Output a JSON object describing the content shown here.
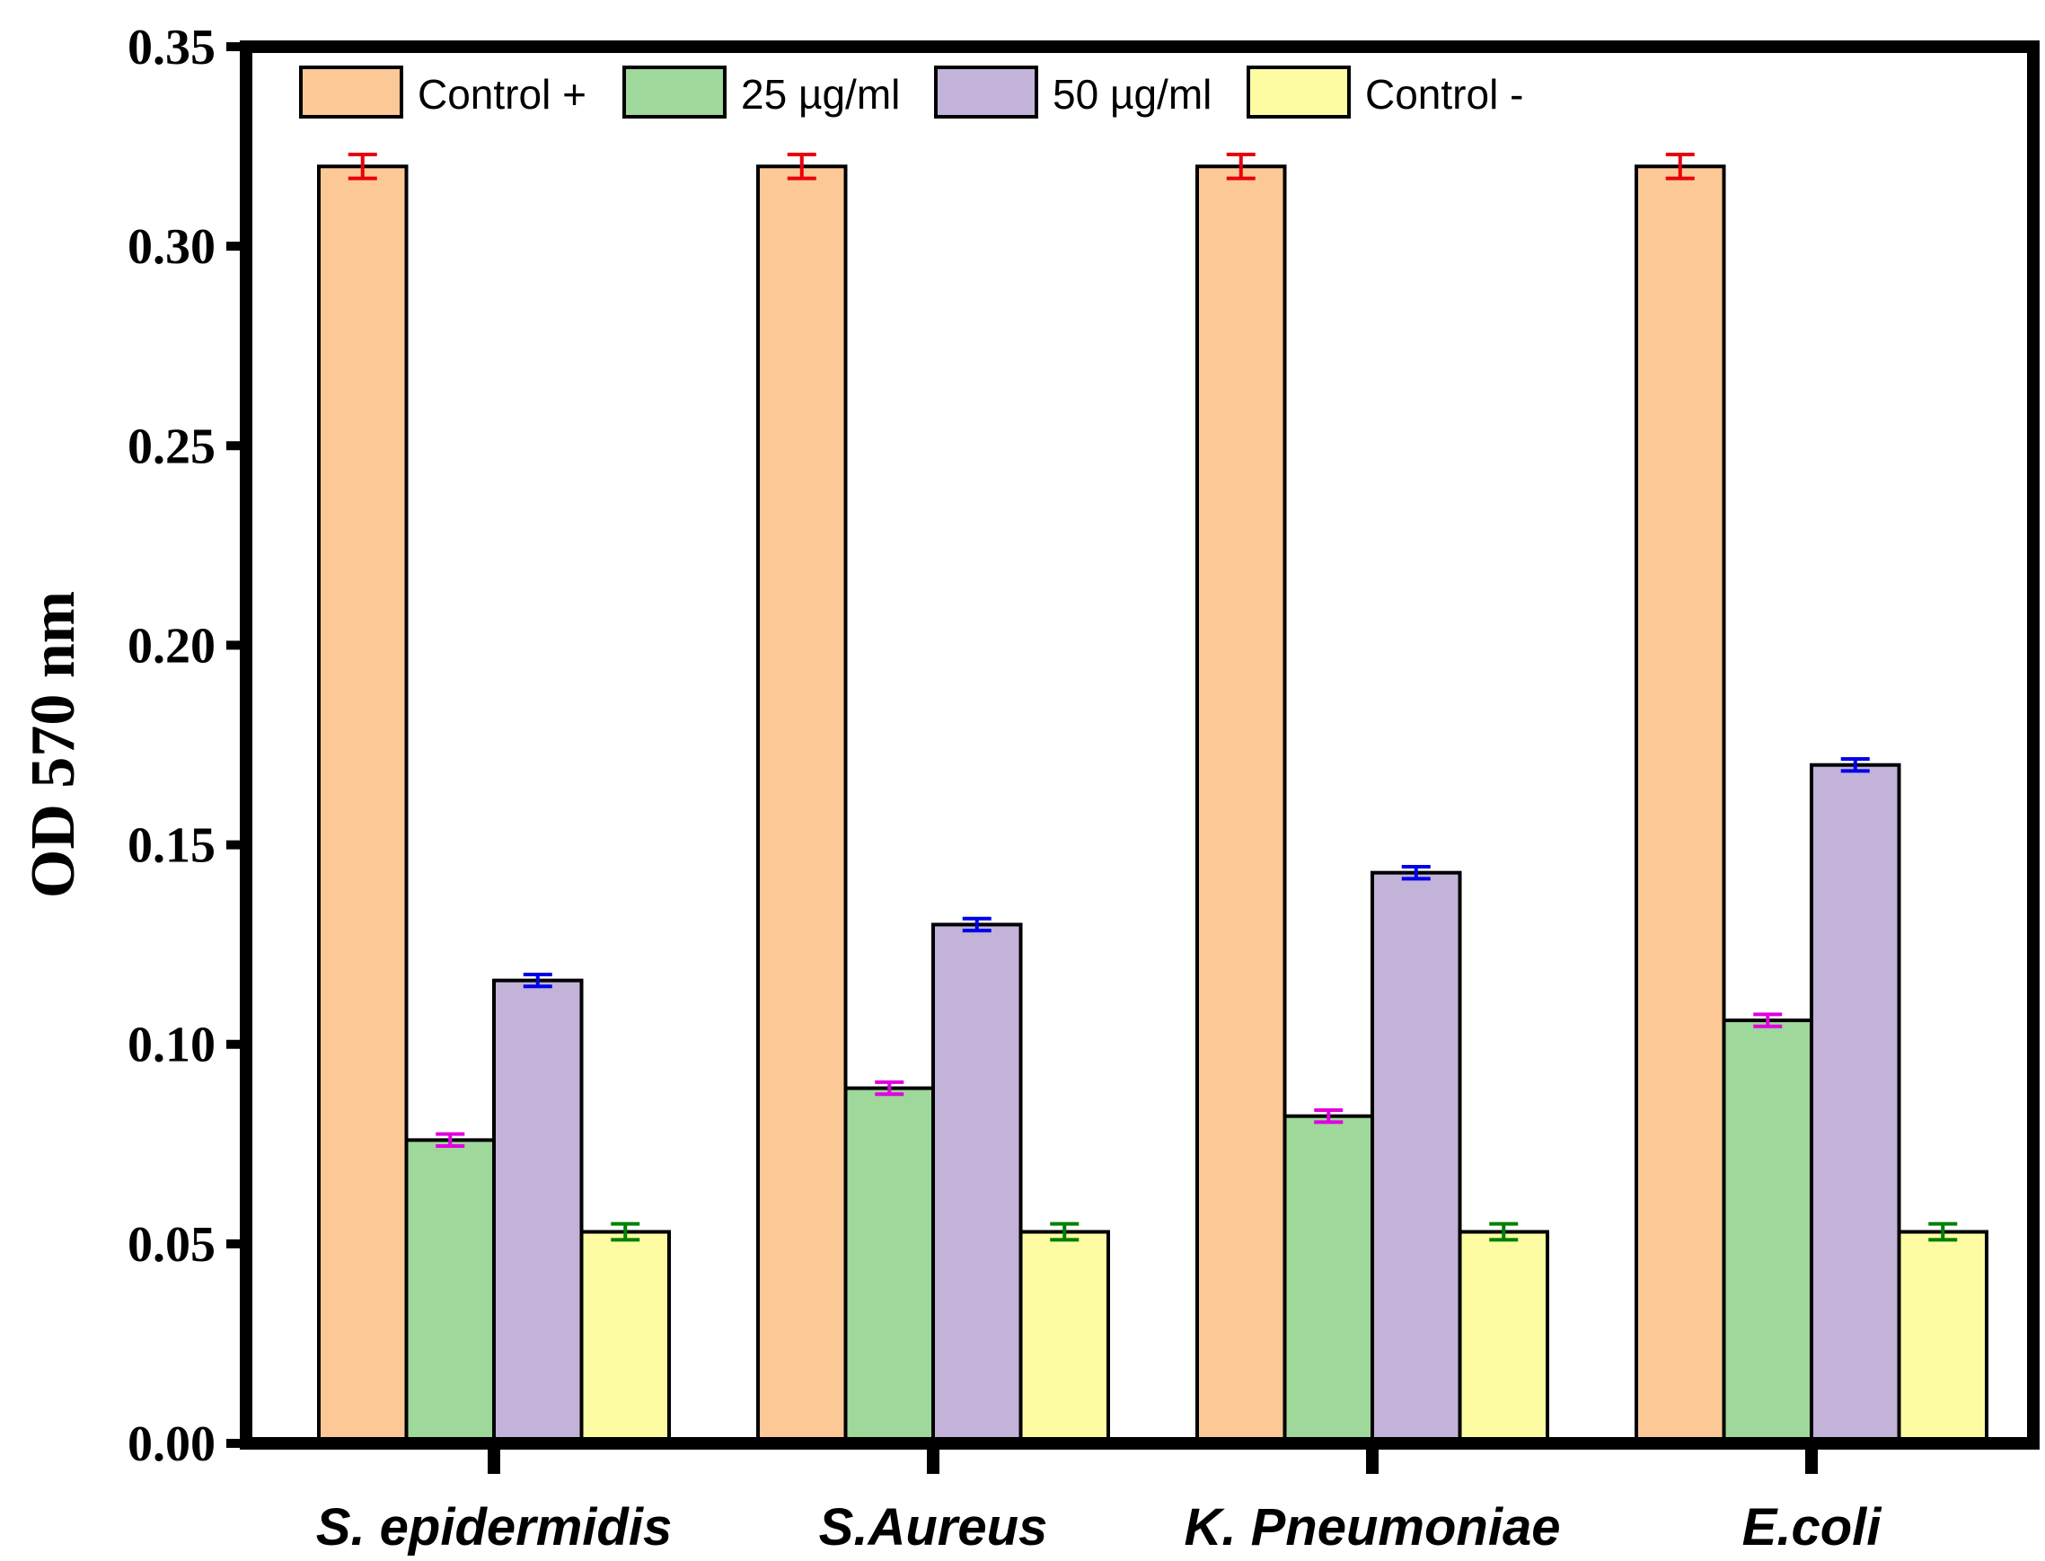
{
  "chart_data": {
    "type": "bar",
    "title": "",
    "xlabel": "",
    "ylabel": "OD 570 nm",
    "ylim": [
      0,
      0.35
    ],
    "yticks": [
      "0.00",
      "0.05",
      "0.10",
      "0.15",
      "0.20",
      "0.25",
      "0.30",
      "0.35"
    ],
    "categories": [
      "S. epidermidis",
      "S.Aureus",
      "K. Pneumoniae",
      "E.coli"
    ],
    "legend_position": "top",
    "series": [
      {
        "name": "Control +",
        "color": "#fbc896",
        "error_color": "#e8000b",
        "values": [
          0.32,
          0.32,
          0.32,
          0.32
        ],
        "errors": [
          0.003,
          0.003,
          0.003,
          0.003
        ]
      },
      {
        "name": "25 µg/ml",
        "color": "#9fd89b",
        "error_color": "#e000e0",
        "values": [
          0.076,
          0.089,
          0.082,
          0.106
        ],
        "errors": [
          0.0015,
          0.0015,
          0.0015,
          0.0015
        ]
      },
      {
        "name": "50 µg/ml",
        "color": "#c3b3d8",
        "error_color": "#0000e8",
        "values": [
          0.116,
          0.13,
          0.143,
          0.17
        ],
        "errors": [
          0.0015,
          0.0015,
          0.0015,
          0.0015
        ]
      },
      {
        "name": "Control -",
        "color": "#fdfca2",
        "error_color": "#008000",
        "values": [
          0.053,
          0.053,
          0.053,
          0.053
        ],
        "errors": [
          0.002,
          0.002,
          0.002,
          0.002
        ]
      }
    ]
  }
}
